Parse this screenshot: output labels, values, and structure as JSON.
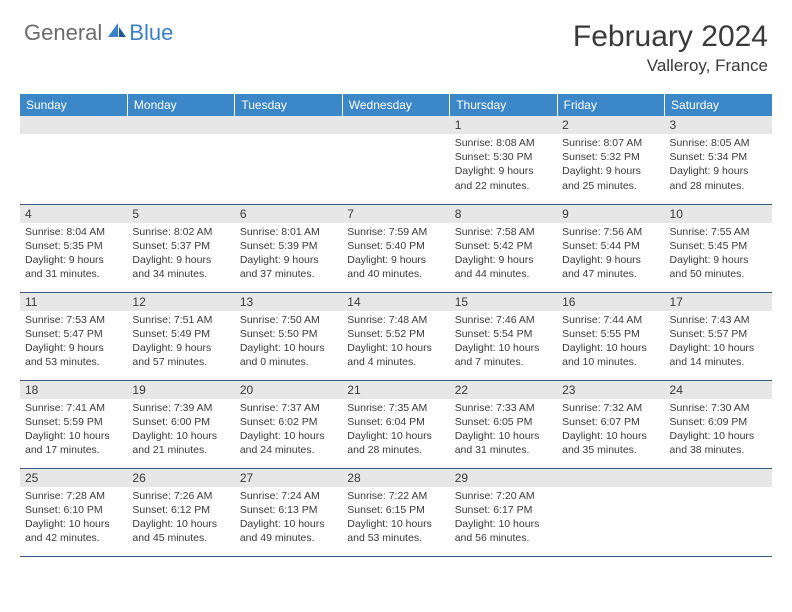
{
  "logo": {
    "part1": "General",
    "part2": "Blue"
  },
  "title": "February 2024",
  "location": "Valleroy, France",
  "colors": {
    "header_bg": "#3b87c8",
    "header_text": "#ffffff",
    "daynum_bg": "#e7e7e7",
    "text": "#3a3a3a",
    "logo_gray": "#6b6b6b",
    "logo_blue": "#3b7fc4",
    "row_border": "#385a7a"
  },
  "day_headers": [
    "Sunday",
    "Monday",
    "Tuesday",
    "Wednesday",
    "Thursday",
    "Friday",
    "Saturday"
  ],
  "weeks": [
    [
      null,
      null,
      null,
      null,
      {
        "n": "1",
        "sr": "8:08 AM",
        "ss": "5:30 PM",
        "dl": "9 hours and 22 minutes."
      },
      {
        "n": "2",
        "sr": "8:07 AM",
        "ss": "5:32 PM",
        "dl": "9 hours and 25 minutes."
      },
      {
        "n": "3",
        "sr": "8:05 AM",
        "ss": "5:34 PM",
        "dl": "9 hours and 28 minutes."
      }
    ],
    [
      {
        "n": "4",
        "sr": "8:04 AM",
        "ss": "5:35 PM",
        "dl": "9 hours and 31 minutes."
      },
      {
        "n": "5",
        "sr": "8:02 AM",
        "ss": "5:37 PM",
        "dl": "9 hours and 34 minutes."
      },
      {
        "n": "6",
        "sr": "8:01 AM",
        "ss": "5:39 PM",
        "dl": "9 hours and 37 minutes."
      },
      {
        "n": "7",
        "sr": "7:59 AM",
        "ss": "5:40 PM",
        "dl": "9 hours and 40 minutes."
      },
      {
        "n": "8",
        "sr": "7:58 AM",
        "ss": "5:42 PM",
        "dl": "9 hours and 44 minutes."
      },
      {
        "n": "9",
        "sr": "7:56 AM",
        "ss": "5:44 PM",
        "dl": "9 hours and 47 minutes."
      },
      {
        "n": "10",
        "sr": "7:55 AM",
        "ss": "5:45 PM",
        "dl": "9 hours and 50 minutes."
      }
    ],
    [
      {
        "n": "11",
        "sr": "7:53 AM",
        "ss": "5:47 PM",
        "dl": "9 hours and 53 minutes."
      },
      {
        "n": "12",
        "sr": "7:51 AM",
        "ss": "5:49 PM",
        "dl": "9 hours and 57 minutes."
      },
      {
        "n": "13",
        "sr": "7:50 AM",
        "ss": "5:50 PM",
        "dl": "10 hours and 0 minutes."
      },
      {
        "n": "14",
        "sr": "7:48 AM",
        "ss": "5:52 PM",
        "dl": "10 hours and 4 minutes."
      },
      {
        "n": "15",
        "sr": "7:46 AM",
        "ss": "5:54 PM",
        "dl": "10 hours and 7 minutes."
      },
      {
        "n": "16",
        "sr": "7:44 AM",
        "ss": "5:55 PM",
        "dl": "10 hours and 10 minutes."
      },
      {
        "n": "17",
        "sr": "7:43 AM",
        "ss": "5:57 PM",
        "dl": "10 hours and 14 minutes."
      }
    ],
    [
      {
        "n": "18",
        "sr": "7:41 AM",
        "ss": "5:59 PM",
        "dl": "10 hours and 17 minutes."
      },
      {
        "n": "19",
        "sr": "7:39 AM",
        "ss": "6:00 PM",
        "dl": "10 hours and 21 minutes."
      },
      {
        "n": "20",
        "sr": "7:37 AM",
        "ss": "6:02 PM",
        "dl": "10 hours and 24 minutes."
      },
      {
        "n": "21",
        "sr": "7:35 AM",
        "ss": "6:04 PM",
        "dl": "10 hours and 28 minutes."
      },
      {
        "n": "22",
        "sr": "7:33 AM",
        "ss": "6:05 PM",
        "dl": "10 hours and 31 minutes."
      },
      {
        "n": "23",
        "sr": "7:32 AM",
        "ss": "6:07 PM",
        "dl": "10 hours and 35 minutes."
      },
      {
        "n": "24",
        "sr": "7:30 AM",
        "ss": "6:09 PM",
        "dl": "10 hours and 38 minutes."
      }
    ],
    [
      {
        "n": "25",
        "sr": "7:28 AM",
        "ss": "6:10 PM",
        "dl": "10 hours and 42 minutes."
      },
      {
        "n": "26",
        "sr": "7:26 AM",
        "ss": "6:12 PM",
        "dl": "10 hours and 45 minutes."
      },
      {
        "n": "27",
        "sr": "7:24 AM",
        "ss": "6:13 PM",
        "dl": "10 hours and 49 minutes."
      },
      {
        "n": "28",
        "sr": "7:22 AM",
        "ss": "6:15 PM",
        "dl": "10 hours and 53 minutes."
      },
      {
        "n": "29",
        "sr": "7:20 AM",
        "ss": "6:17 PM",
        "dl": "10 hours and 56 minutes."
      },
      null,
      null
    ]
  ],
  "labels": {
    "sunrise": "Sunrise:",
    "sunset": "Sunset:",
    "daylight": "Daylight:"
  }
}
